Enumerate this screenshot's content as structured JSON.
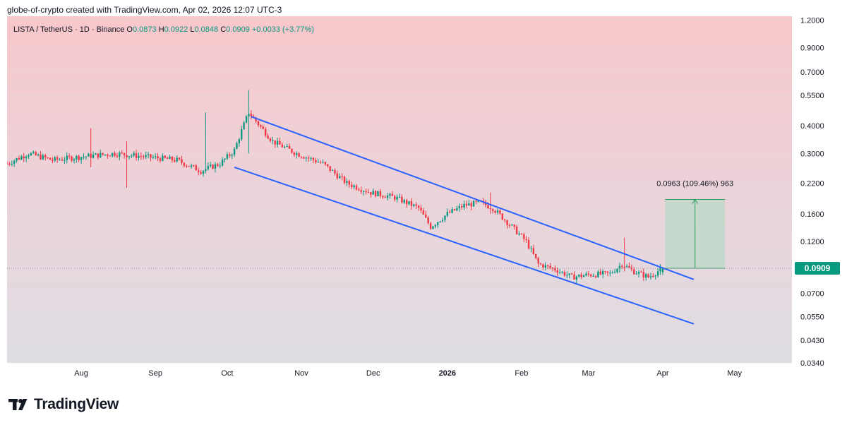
{
  "credit": "globe-of-crypto created with TradingView.com, Apr 02, 2026 12:07 UTC-3",
  "legend": {
    "symbol": "LISTA / TetherUS · 1D · Binance",
    "o_label": "O",
    "o": "0.0873",
    "h_label": "H",
    "h": "0.0922",
    "l_label": "L",
    "l": "0.0848",
    "c_label": "C",
    "c": "0.0909",
    "change": "+0.0033 (+3.77%)"
  },
  "price_tag": "0.0909",
  "measure_label": "0.0963 (109.46%) 963",
  "brand": "TradingView",
  "colors": {
    "up": "#089981",
    "down": "#f23645",
    "trendline": "#2962ff",
    "measure_fill": "#b6d8c6",
    "measure_line": "#2e9d5c",
    "price_tag_bg": "#089981"
  },
  "chart_data": {
    "type": "candlestick",
    "scale": "log",
    "symbol": "LISTA / TetherUS",
    "interval": "1D",
    "exchange": "Binance",
    "ohlc_last": {
      "o": 0.0873,
      "h": 0.0922,
      "l": 0.0848,
      "c": 0.0909,
      "change": 0.0033,
      "change_pct": 3.77
    },
    "ylim": [
      0.034,
      1.25
    ],
    "y_ticks": [
      "1.2000",
      "0.9000",
      "0.7000",
      "0.5500",
      "0.4000",
      "0.3000",
      "0.2200",
      "0.1600",
      "0.1200",
      "0.0700",
      "0.0550",
      "0.0430",
      "0.0340"
    ],
    "x_ticks": [
      "Aug",
      "Sep",
      "Oct",
      "Nov",
      "Dec",
      "2026",
      "Feb",
      "Mar",
      "Apr",
      "May"
    ],
    "x_start": "2025-07-01",
    "x_end": "2026-05-25",
    "price_curve": [
      [
        "2025-07-01",
        0.27
      ],
      [
        "2025-07-10",
        0.3
      ],
      [
        "2025-07-20",
        0.28
      ],
      [
        "2025-08-01",
        0.29
      ],
      [
        "2025-08-15",
        0.3
      ],
      [
        "2025-08-28",
        0.29
      ],
      [
        "2025-09-10",
        0.28
      ],
      [
        "2025-09-20",
        0.25
      ],
      [
        "2025-09-28",
        0.27
      ],
      [
        "2025-10-04",
        0.31
      ],
      [
        "2025-10-07",
        0.38
      ],
      [
        "2025-10-10",
        0.46
      ],
      [
        "2025-10-13",
        0.42
      ],
      [
        "2025-10-20",
        0.34
      ],
      [
        "2025-10-30",
        0.3
      ],
      [
        "2025-11-10",
        0.27
      ],
      [
        "2025-11-20",
        0.22
      ],
      [
        "2025-11-30",
        0.2
      ],
      [
        "2025-12-10",
        0.19
      ],
      [
        "2025-12-20",
        0.17
      ],
      [
        "2025-12-25",
        0.14
      ],
      [
        "2026-01-01",
        0.16
      ],
      [
        "2026-01-08",
        0.175
      ],
      [
        "2026-01-15",
        0.18
      ],
      [
        "2026-01-20",
        0.17
      ],
      [
        "2026-01-28",
        0.14
      ],
      [
        "2026-02-03",
        0.12
      ],
      [
        "2026-02-08",
        0.095
      ],
      [
        "2026-02-15",
        0.09
      ],
      [
        "2026-02-22",
        0.083
      ],
      [
        "2026-03-01",
        0.085
      ],
      [
        "2026-03-10",
        0.086
      ],
      [
        "2026-03-15",
        0.095
      ],
      [
        "2026-03-20",
        0.088
      ],
      [
        "2026-03-26",
        0.083
      ],
      [
        "2026-04-01",
        0.0909
      ]
    ],
    "trendlines": [
      {
        "from": [
          "2025-10-11",
          0.44
        ],
        "to": [
          "2026-04-14",
          0.081
        ]
      },
      {
        "from": [
          "2025-10-04",
          0.26
        ],
        "to": [
          "2026-04-14",
          0.051
        ]
      }
    ],
    "measure": {
      "from": [
        "2026-04-02",
        0.0909
      ],
      "to": [
        "2026-04-27",
        0.186
      ],
      "change": 0.0963,
      "change_pct": 109.46,
      "bars": 963
    }
  }
}
